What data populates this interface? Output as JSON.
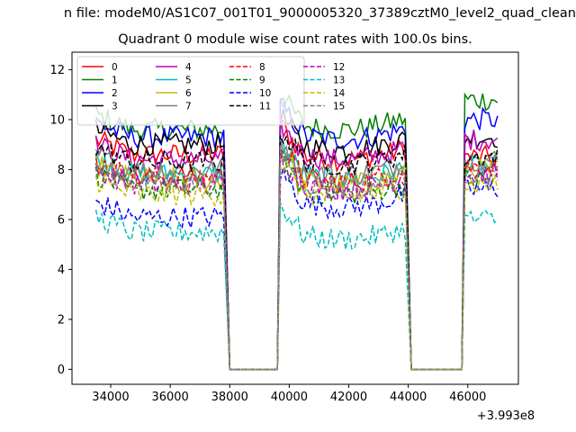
{
  "figure": {
    "suptitle": "n file: modeM0/AS1C07_001T01_9000005320_37389cztM0_level2_quad_clean"
  },
  "chart_data": {
    "type": "line",
    "title": "Quadrant 0 module wise count rates with 100.0s bins.",
    "xlabel": "",
    "ylabel": "",
    "x_offset_label": "+3.993e8",
    "xlim": [
      32700,
      47700
    ],
    "ylim": [
      -0.6,
      12.7
    ],
    "x_ticks": [
      34000,
      36000,
      38000,
      40000,
      42000,
      44000,
      46000
    ],
    "x_tick_labels": [
      "34000",
      "36000",
      "38000",
      "40000",
      "42000",
      "44000",
      "46000"
    ],
    "y_ticks": [
      0,
      2,
      4,
      6,
      8,
      10,
      12
    ],
    "y_tick_labels": [
      "0",
      "2",
      "4",
      "6",
      "8",
      "10",
      "12"
    ],
    "grid": false,
    "legend_position": "top-left",
    "legend_columns": 4,
    "data_segments": [
      [
        33500,
        37800
      ],
      [
        39700,
        43900
      ],
      [
        45900,
        47000
      ]
    ],
    "zero_gaps": [
      [
        38000,
        39600
      ],
      [
        44100,
        45800
      ]
    ],
    "series": [
      {
        "name": "0",
        "color": "#ff0000",
        "dash": "solid",
        "levels": [
          8.6,
          8.8,
          8.5
        ]
      },
      {
        "name": "1",
        "color": "#008000",
        "dash": "solid",
        "levels": [
          9.6,
          10.0,
          10.8
        ]
      },
      {
        "name": "2",
        "color": "#0000ff",
        "dash": "solid",
        "levels": [
          9.3,
          9.6,
          10.0
        ]
      },
      {
        "name": "3",
        "color": "#000000",
        "dash": "solid",
        "levels": [
          9.0,
          9.2,
          9.3
        ]
      },
      {
        "name": "4",
        "color": "#bf00bf",
        "dash": "solid",
        "levels": [
          8.4,
          8.8,
          9.2
        ]
      },
      {
        "name": "5",
        "color": "#00bfbf",
        "dash": "solid",
        "levels": [
          7.8,
          8.0,
          8.1
        ]
      },
      {
        "name": "6",
        "color": "#bfbf00",
        "dash": "solid",
        "levels": [
          7.6,
          7.8,
          8.0
        ]
      },
      {
        "name": "7",
        "color": "#808080",
        "dash": "solid",
        "levels": [
          8.0,
          8.2,
          8.4
        ]
      },
      {
        "name": "8",
        "color": "#ff0000",
        "dash": "dashed",
        "levels": [
          7.7,
          7.9,
          8.1
        ]
      },
      {
        "name": "9",
        "color": "#008000",
        "dash": "dashed",
        "levels": [
          7.2,
          7.4,
          7.6
        ]
      },
      {
        "name": "10",
        "color": "#0000ff",
        "dash": "dashed",
        "levels": [
          6.1,
          6.9,
          7.2
        ]
      },
      {
        "name": "11",
        "color": "#000000",
        "dash": "dashed",
        "levels": [
          8.3,
          8.6,
          8.5
        ]
      },
      {
        "name": "12",
        "color": "#bf00bf",
        "dash": "dashed",
        "levels": [
          7.4,
          7.6,
          7.8
        ]
      },
      {
        "name": "13",
        "color": "#00bfbf",
        "dash": "dashed",
        "levels": [
          5.5,
          5.6,
          6.0
        ]
      },
      {
        "name": "14",
        "color": "#bfbf00",
        "dash": "dashed",
        "levels": [
          7.0,
          7.3,
          7.4
        ]
      },
      {
        "name": "15",
        "color": "#808080",
        "dash": "dashed",
        "levels": [
          7.5,
          7.7,
          7.8
        ]
      }
    ]
  }
}
